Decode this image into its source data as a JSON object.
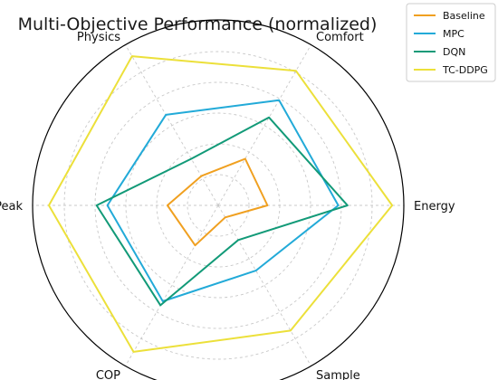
{
  "chart_data": {
    "type": "radar",
    "title": "Multi-Objective Performance (normalized)",
    "axes": [
      "Energy",
      "Comfort",
      "Physics",
      "Peak",
      "COP",
      "Sample"
    ],
    "rlim": [
      0,
      1
    ],
    "grid": true,
    "legend_position": "top-right",
    "series": [
      {
        "name": "Baseline",
        "color": "#f0a020",
        "values": [
          0.32,
          0.35,
          0.22,
          0.33,
          0.3,
          0.09
        ]
      },
      {
        "name": "MPC",
        "color": "#22aad8",
        "values": [
          0.78,
          0.79,
          0.68,
          0.72,
          0.72,
          0.49
        ]
      },
      {
        "name": "DQN",
        "color": "#129a78",
        "values": [
          0.84,
          0.66,
          0.35,
          0.79,
          0.75,
          0.26
        ]
      },
      {
        "name": "TC-DDPG",
        "color": "#ece03a",
        "values": [
          1.13,
          1.01,
          1.12,
          1.1,
          1.1,
          0.94
        ]
      }
    ]
  }
}
